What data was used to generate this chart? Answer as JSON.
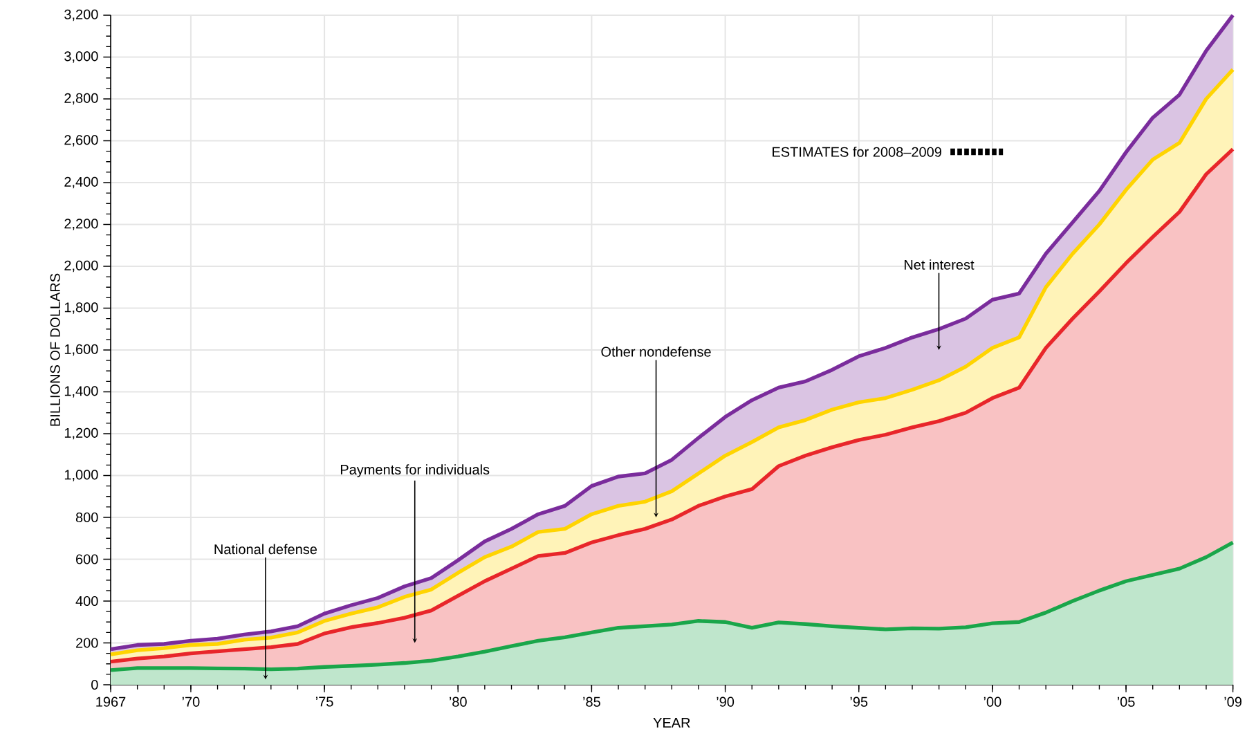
{
  "chart_data": {
    "type": "area",
    "stacked": true,
    "ylabel": "BILLIONS OF DOLLARS",
    "xlabel": "YEAR",
    "x": [
      1967,
      1968,
      1969,
      1970,
      1971,
      1972,
      1973,
      1974,
      1975,
      1976,
      1977,
      1978,
      1979,
      1980,
      1981,
      1982,
      1983,
      1984,
      1985,
      1986,
      1987,
      1988,
      1989,
      1990,
      1991,
      1992,
      1993,
      1994,
      1995,
      1996,
      1997,
      1998,
      1999,
      2000,
      2001,
      2002,
      2003,
      2004,
      2005,
      2006,
      2007,
      2008,
      2009
    ],
    "series": [
      {
        "color": "#1aa64a",
        "values": [
          70,
          80,
          80,
          80,
          78,
          77,
          74,
          77,
          85,
          90,
          96,
          104,
          115,
          135,
          158,
          185,
          210,
          227,
          250,
          272,
          280,
          288,
          305,
          300,
          272,
          298,
          290,
          280,
          272,
          265,
          270,
          268,
          275,
          294,
          300,
          345,
          400,
          450,
          495,
          525,
          555,
          610,
          680
        ]
      },
      {
        "color": "#e8262a",
        "values": [
          40,
          45,
          55,
          70,
          82,
          93,
          106,
          118,
          160,
          185,
          199,
          216,
          240,
          290,
          337,
          370,
          405,
          403,
          430,
          443,
          465,
          502,
          550,
          600,
          663,
          747,
          805,
          855,
          898,
          930,
          960,
          992,
          1025,
          1076,
          1120,
          1265,
          1350,
          1430,
          1520,
          1615,
          1705,
          1830,
          1880
        ]
      },
      {
        "color": "#ffd400",
        "values": [
          35,
          40,
          40,
          40,
          35,
          45,
          45,
          55,
          60,
          65,
          75,
          100,
          100,
          110,
          115,
          105,
          115,
          115,
          135,
          140,
          130,
          135,
          155,
          195,
          225,
          185,
          170,
          180,
          180,
          175,
          180,
          195,
          220,
          240,
          240,
          290,
          310,
          320,
          350,
          370,
          330,
          360,
          380
        ]
      },
      {
        "color": "#7a2c9c",
        "values": [
          25,
          25,
          20,
          20,
          25,
          25,
          30,
          30,
          35,
          40,
          45,
          50,
          55,
          60,
          75,
          85,
          85,
          110,
          135,
          140,
          135,
          150,
          170,
          185,
          200,
          190,
          185,
          190,
          220,
          240,
          250,
          245,
          230,
          230,
          210,
          160,
          150,
          160,
          180,
          200,
          230,
          230,
          260
        ]
      }
    ],
    "xlim": [
      1967,
      2009
    ],
    "xticks": [
      {
        "value": 1967,
        "label": "1967"
      },
      {
        "value": 1970,
        "label": "’70"
      },
      {
        "value": 1975,
        "label": "’75"
      },
      {
        "value": 1980,
        "label": "’80"
      },
      {
        "value": 1985,
        "label": "’85"
      },
      {
        "value": 1990,
        "label": "’90"
      },
      {
        "value": 1995,
        "label": "’95"
      },
      {
        "value": 2000,
        "label": "’00"
      },
      {
        "value": 2005,
        "label": "’05"
      },
      {
        "value": 2009,
        "label": "’09"
      }
    ],
    "ylim": [
      0,
      3200
    ],
    "yticks": [
      0,
      200,
      400,
      600,
      800,
      {
        "value": 1000,
        "label": "1,000"
      },
      {
        "value": 1200,
        "label": "1,200"
      },
      {
        "value": 1400,
        "label": "1,400"
      },
      {
        "value": 1600,
        "label": "1,600"
      },
      {
        "value": 1800,
        "label": "1,800"
      },
      {
        "value": 2000,
        "label": "2,000"
      },
      {
        "value": 2200,
        "label": "2,200"
      },
      {
        "value": 2400,
        "label": "2,400"
      },
      {
        "value": 2600,
        "label": "2,600"
      },
      {
        "value": 2800,
        "label": "2,800"
      },
      {
        "value": 3000,
        "label": "3,000"
      },
      {
        "value": 3200,
        "label": "3,200"
      }
    ],
    "grid": true,
    "annotations": [
      "National defense",
      "Payments for individuals",
      "Other nondefense",
      "Net interest",
      "ESTIMATES for 2008–2009"
    ]
  }
}
